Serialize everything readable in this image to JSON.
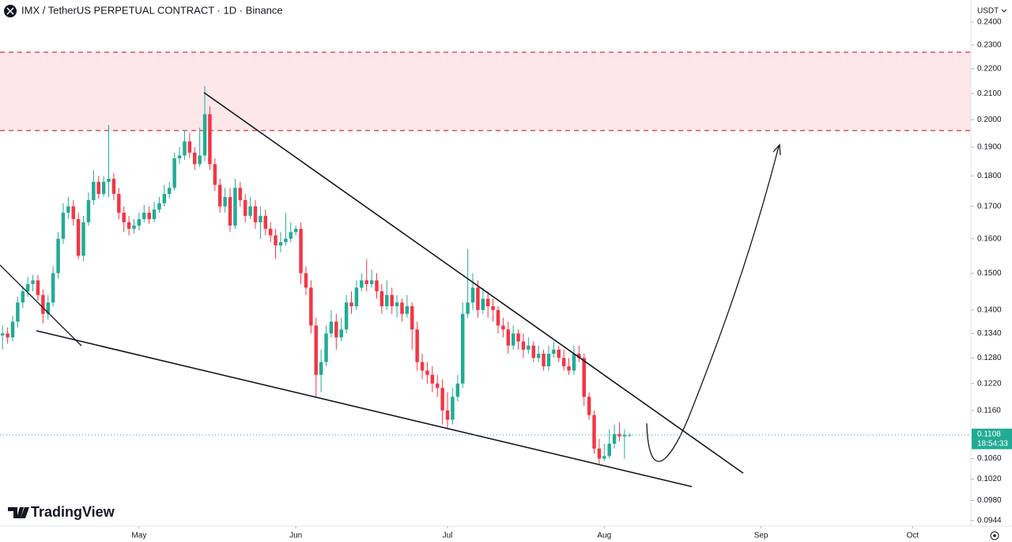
{
  "chart_data": {
    "type": "candlestick",
    "title": "IMX / TetherUS PERPETUAL CONTRACT · 1D · Binance",
    "currency": "USDT",
    "watermark": "TradingView",
    "last_price": 0.1108,
    "countdown": "18:54:33",
    "log_scale": true,
    "grid": false,
    "up_color": "#22ab94",
    "down_color": "#f23645",
    "xlim": [
      0,
      192
    ],
    "xticks": [
      {
        "value": 27.5,
        "label": "May"
      },
      {
        "value": 58.5,
        "label": "Jun"
      },
      {
        "value": 88.5,
        "label": "Jul"
      },
      {
        "value": 119.5,
        "label": "Aug"
      },
      {
        "value": 150.5,
        "label": "Sep"
      },
      {
        "value": 180.5,
        "label": "Oct"
      }
    ],
    "ylim": [
      0.0934,
      0.2502
    ],
    "yticks": [
      {
        "value": 0.0944,
        "label": "0.0944"
      },
      {
        "value": 0.098,
        "label": "0.0980"
      },
      {
        "value": 0.102,
        "label": "0.1020"
      },
      {
        "value": 0.106,
        "label": "0.1060"
      },
      {
        "value": 0.116,
        "label": "0.1160"
      },
      {
        "value": 0.122,
        "label": "0.1220"
      },
      {
        "value": 0.128,
        "label": "0.1280"
      },
      {
        "value": 0.134,
        "label": "0.1340"
      },
      {
        "value": 0.14,
        "label": "0.1400"
      },
      {
        "value": 0.15,
        "label": "0.1500"
      },
      {
        "value": 0.16,
        "label": "0.1600"
      },
      {
        "value": 0.17,
        "label": "0.1700"
      },
      {
        "value": 0.18,
        "label": "0.1800"
      },
      {
        "value": 0.19,
        "label": "0.1900"
      },
      {
        "value": 0.2,
        "label": "0.2000"
      },
      {
        "value": 0.21,
        "label": "0.2100"
      },
      {
        "value": 0.22,
        "label": "0.2200"
      },
      {
        "value": 0.23,
        "label": "0.2300"
      },
      {
        "value": 0.24,
        "label": "0.2400"
      }
    ],
    "candles": [
      [
        0.1335,
        0.136,
        0.13,
        0.134
      ],
      [
        0.134,
        0.1355,
        0.1315,
        0.133
      ],
      [
        0.133,
        0.1385,
        0.132,
        0.137
      ],
      [
        0.137,
        0.1435,
        0.1355,
        0.142
      ],
      [
        0.142,
        0.1465,
        0.1405,
        0.145
      ],
      [
        0.145,
        0.149,
        0.1435,
        0.147
      ],
      [
        0.147,
        0.1495,
        0.145,
        0.148
      ],
      [
        0.148,
        0.1495,
        0.1425,
        0.144
      ],
      [
        0.144,
        0.1455,
        0.1365,
        0.139
      ],
      [
        0.139,
        0.144,
        0.1375,
        0.142
      ],
      [
        0.142,
        0.152,
        0.141,
        0.15
      ],
      [
        0.15,
        0.162,
        0.1485,
        0.16
      ],
      [
        0.16,
        0.171,
        0.1585,
        0.168
      ],
      [
        0.168,
        0.173,
        0.166,
        0.17
      ],
      [
        0.17,
        0.172,
        0.164,
        0.166
      ],
      [
        0.166,
        0.168,
        0.154,
        0.155
      ],
      [
        0.155,
        0.167,
        0.1535,
        0.165
      ],
      [
        0.165,
        0.1745,
        0.164,
        0.172
      ],
      [
        0.172,
        0.182,
        0.1705,
        0.178
      ],
      [
        0.178,
        0.18,
        0.1725,
        0.174
      ],
      [
        0.174,
        0.18,
        0.173,
        0.178
      ],
      [
        0.178,
        0.198,
        0.173,
        0.179
      ],
      [
        0.179,
        0.181,
        0.172,
        0.174
      ],
      [
        0.174,
        0.176,
        0.166,
        0.168
      ],
      [
        0.168,
        0.17,
        0.162,
        0.165
      ],
      [
        0.165,
        0.167,
        0.161,
        0.163
      ],
      [
        0.163,
        0.166,
        0.1615,
        0.164
      ],
      [
        0.164,
        0.168,
        0.1625,
        0.166
      ],
      [
        0.166,
        0.1705,
        0.165,
        0.168
      ],
      [
        0.168,
        0.17,
        0.1645,
        0.166
      ],
      [
        0.166,
        0.1715,
        0.165,
        0.169
      ],
      [
        0.169,
        0.173,
        0.168,
        0.171
      ],
      [
        0.171,
        0.177,
        0.17,
        0.174
      ],
      [
        0.174,
        0.178,
        0.1725,
        0.176
      ],
      [
        0.176,
        0.188,
        0.175,
        0.186
      ],
      [
        0.186,
        0.19,
        0.184,
        0.187
      ],
      [
        0.187,
        0.196,
        0.1855,
        0.192
      ],
      [
        0.192,
        0.195,
        0.186,
        0.188
      ],
      [
        0.188,
        0.19,
        0.182,
        0.184
      ],
      [
        0.184,
        0.197,
        0.183,
        0.187
      ],
      [
        0.187,
        0.213,
        0.185,
        0.202
      ],
      [
        0.202,
        0.205,
        0.182,
        0.184
      ],
      [
        0.184,
        0.186,
        0.175,
        0.177
      ],
      [
        0.177,
        0.179,
        0.168,
        0.17
      ],
      [
        0.17,
        0.176,
        0.168,
        0.173
      ],
      [
        0.173,
        0.176,
        0.162,
        0.164
      ],
      [
        0.164,
        0.179,
        0.163,
        0.176
      ],
      [
        0.176,
        0.178,
        0.17,
        0.172
      ],
      [
        0.172,
        0.174,
        0.165,
        0.167
      ],
      [
        0.167,
        0.173,
        0.166,
        0.17
      ],
      [
        0.17,
        0.172,
        0.163,
        0.165
      ],
      [
        0.165,
        0.17,
        0.16,
        0.167
      ],
      [
        0.167,
        0.169,
        0.161,
        0.163
      ],
      [
        0.163,
        0.165,
        0.159,
        0.161
      ],
      [
        0.161,
        0.163,
        0.154,
        0.158
      ],
      [
        0.158,
        0.162,
        0.156,
        0.159
      ],
      [
        0.159,
        0.168,
        0.158,
        0.16
      ],
      [
        0.16,
        0.165,
        0.159,
        0.162
      ],
      [
        0.162,
        0.164,
        0.161,
        0.163
      ],
      [
        0.163,
        0.165,
        0.147,
        0.15
      ],
      [
        0.15,
        0.152,
        0.144,
        0.146
      ],
      [
        0.146,
        0.148,
        0.134,
        0.136
      ],
      [
        0.136,
        0.138,
        0.119,
        0.124
      ],
      [
        0.124,
        0.13,
        0.12,
        0.127
      ],
      [
        0.127,
        0.136,
        0.126,
        0.134
      ],
      [
        0.134,
        0.14,
        0.133,
        0.137
      ],
      [
        0.137,
        0.139,
        0.13,
        0.133
      ],
      [
        0.133,
        0.138,
        0.132,
        0.135
      ],
      [
        0.135,
        0.144,
        0.134,
        0.142
      ],
      [
        0.142,
        0.145,
        0.139,
        0.141
      ],
      [
        0.141,
        0.148,
        0.14,
        0.146
      ],
      [
        0.146,
        0.15,
        0.145,
        0.148
      ],
      [
        0.148,
        0.154,
        0.145,
        0.147
      ],
      [
        0.147,
        0.151,
        0.146,
        0.148
      ],
      [
        0.148,
        0.15,
        0.143,
        0.145
      ],
      [
        0.145,
        0.147,
        0.139,
        0.141
      ],
      [
        0.141,
        0.148,
        0.14,
        0.144
      ],
      [
        0.144,
        0.146,
        0.139,
        0.141
      ],
      [
        0.141,
        0.144,
        0.138,
        0.142
      ],
      [
        0.142,
        0.143,
        0.137,
        0.139
      ],
      [
        0.139,
        0.144,
        0.138,
        0.141
      ],
      [
        0.141,
        0.142,
        0.13,
        0.135
      ],
      [
        0.135,
        0.137,
        0.125,
        0.127
      ],
      [
        0.127,
        0.129,
        0.123,
        0.125
      ],
      [
        0.125,
        0.127,
        0.122,
        0.124
      ],
      [
        0.124,
        0.126,
        0.12,
        0.122
      ],
      [
        0.122,
        0.124,
        0.119,
        0.121
      ],
      [
        0.121,
        0.123,
        0.113,
        0.116
      ],
      [
        0.116,
        0.12,
        0.112,
        0.114
      ],
      [
        0.114,
        0.121,
        0.113,
        0.119
      ],
      [
        0.119,
        0.124,
        0.118,
        0.122
      ],
      [
        0.122,
        0.142,
        0.121,
        0.139
      ],
      [
        0.139,
        0.157,
        0.138,
        0.142
      ],
      [
        0.142,
        0.15,
        0.14,
        0.146
      ],
      [
        0.146,
        0.148,
        0.138,
        0.14
      ],
      [
        0.14,
        0.146,
        0.139,
        0.143
      ],
      [
        0.143,
        0.145,
        0.138,
        0.141
      ],
      [
        0.141,
        0.143,
        0.137,
        0.14
      ],
      [
        0.14,
        0.141,
        0.134,
        0.136
      ],
      [
        0.136,
        0.138,
        0.133,
        0.135
      ],
      [
        0.135,
        0.137,
        0.129,
        0.131
      ],
      [
        0.131,
        0.136,
        0.13,
        0.134
      ],
      [
        0.134,
        0.135,
        0.13,
        0.132
      ],
      [
        0.132,
        0.134,
        0.128,
        0.13
      ],
      [
        0.13,
        0.133,
        0.129,
        0.131
      ],
      [
        0.131,
        0.132,
        0.127,
        0.128
      ],
      [
        0.128,
        0.131,
        0.127,
        0.129
      ],
      [
        0.129,
        0.13,
        0.125,
        0.126
      ],
      [
        0.126,
        0.131,
        0.125,
        0.129
      ],
      [
        0.129,
        0.132,
        0.128,
        0.13
      ],
      [
        0.13,
        0.131,
        0.127,
        0.128
      ],
      [
        0.128,
        0.13,
        0.125,
        0.126
      ],
      [
        0.126,
        0.128,
        0.124,
        0.125
      ],
      [
        0.125,
        0.131,
        0.124,
        0.129
      ],
      [
        0.129,
        0.131,
        0.127,
        0.128
      ],
      [
        0.128,
        0.129,
        0.117,
        0.119
      ],
      [
        0.119,
        0.12,
        0.114,
        0.115
      ],
      [
        0.115,
        0.116,
        0.107,
        0.108
      ],
      [
        0.108,
        0.11,
        0.105,
        0.106
      ],
      [
        0.106,
        0.109,
        0.1055,
        0.1065
      ],
      [
        0.1065,
        0.112,
        0.106,
        0.109
      ],
      [
        0.109,
        0.113,
        0.108,
        0.111
      ],
      [
        0.111,
        0.1135,
        0.1095,
        0.1105
      ],
      [
        0.1105,
        0.112,
        0.106,
        0.1108
      ],
      [
        0.1108,
        0.1112,
        0.1104,
        0.1108
      ]
    ]
  }
}
